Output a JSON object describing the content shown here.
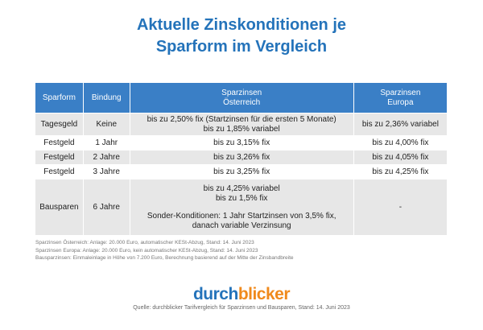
{
  "header": {
    "title": [
      "Aktuelle Zinskonditionen je",
      "Sparform im Vergleich"
    ]
  },
  "table": {
    "columns": [
      [
        "Sparform"
      ],
      [
        "Bindung"
      ],
      [
        "Sparzinsen",
        "Österreich"
      ],
      [
        "Sparzinsen",
        "Europa"
      ]
    ],
    "rows": [
      [
        [
          "Tagesgeld"
        ],
        [
          "Keine"
        ],
        [
          "bis zu 2,50% fix (Startzinsen für die ersten 5 Monate)",
          "bis zu 1,85% variabel"
        ],
        [
          "bis zu 2,36% variabel"
        ]
      ],
      [
        [
          "Festgeld"
        ],
        [
          "1 Jahr"
        ],
        [
          "bis zu 3,15% fix"
        ],
        [
          "bis zu 4,00% fix"
        ]
      ],
      [
        [
          "Festgeld"
        ],
        [
          "2 Jahre"
        ],
        [
          "bis zu 3,26% fix"
        ],
        [
          "bis zu 4,05% fix"
        ]
      ],
      [
        [
          "Festgeld"
        ],
        [
          "3 Jahre"
        ],
        [
          "bis zu 3,25% fix"
        ],
        [
          "bis zu 4,25% fix"
        ]
      ],
      [
        [
          "Bausparen"
        ],
        [
          "6 Jahre"
        ],
        [
          "bis zu 4,25% variabel",
          "bis zu 1,5% fix",
          "Sonder-Konditionen: 1 Jahr Startzinsen von 3,5% fix,",
          "danach variable Verzinsung"
        ],
        [
          "-"
        ]
      ]
    ]
  },
  "notes": [
    "Sparzinsen Österreich: Anlage: 20.000 Euro, automatischer KESt-Abzug, Stand: 14. Juni 2023",
    "Sparzinsen Europa: Anlage: 20.000 Euro, kein automatischer KESt-Abzug, Stand: 14. Juni  2023",
    "Bausparzinsen: Einmaleinlage in Höhe von 7.200 Euro, Berechnung basierend auf der Mitte der Zinsbandbreite"
  ],
  "logo": [
    "durch",
    "blicker"
  ],
  "source": "Quelle: durchblicker Tarifvergleich für Sparzinsen und Bausparen, Stand: 14. Juni 2023"
}
